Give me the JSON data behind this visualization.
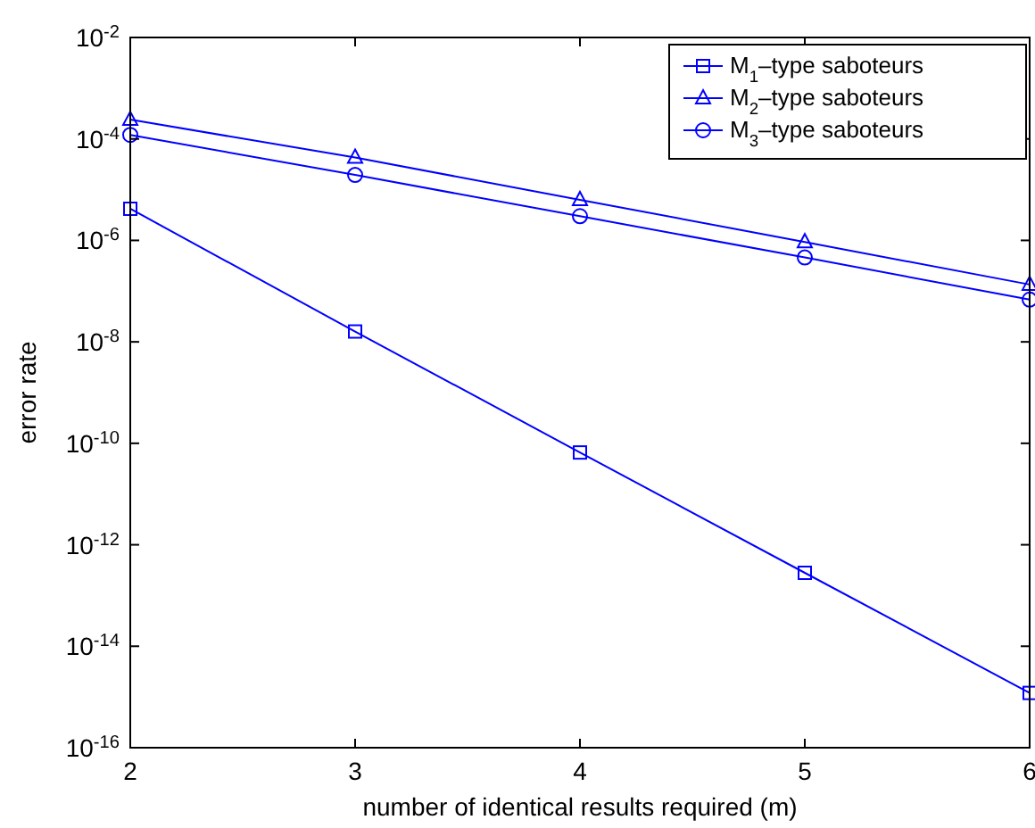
{
  "chart_data": {
    "type": "line",
    "xlabel": "number of identical results required (m)",
    "ylabel": "error rate",
    "x": [
      2,
      3,
      4,
      5,
      6
    ],
    "xlim": [
      2,
      6
    ],
    "xticks": [
      2,
      3,
      4,
      5,
      6
    ],
    "ylim": [
      1e-16,
      0.01
    ],
    "yticks": [
      {
        "value": 1e-16,
        "label": "10$^{-16}$"
      },
      {
        "value": 1e-14,
        "label": "10$^{-14}$"
      },
      {
        "value": 1e-12,
        "label": "10$^{-12}$"
      },
      {
        "value": 1e-10,
        "label": "10$^{-10}$"
      },
      {
        "value": 1e-08,
        "label": "10$^{-8}$"
      },
      {
        "value": 1e-06,
        "label": "10$^{-6}$"
      },
      {
        "value": 0.0001,
        "label": "10$^{-4}$"
      },
      {
        "value": 0.01,
        "label": "10$^{-2}$"
      }
    ],
    "log": "y",
    "grid": false,
    "legend": "top right",
    "line_style": "solid",
    "series": [
      {
        "name": "M$_{1}$–type saboteurs",
        "color": "#0000ff",
        "marker": "square",
        "values": [
          4.2e-06,
          1.6e-08,
          6.6e-11,
          2.8e-13,
          1.2e-15
        ]
      },
      {
        "name": "M$_{2}$–type saboteurs",
        "color": "#0000ff",
        "marker": "triangle",
        "values": [
          0.00024,
          4.3e-05,
          6.3e-06,
          9.3e-07,
          1.35e-07
        ]
      },
      {
        "name": "M$_{3}$–type saboteurs",
        "color": "#0000ff",
        "marker": "circle",
        "values": [
          0.00012,
          1.95e-05,
          3e-06,
          4.6e-07,
          6.8e-08
        ]
      }
    ]
  }
}
